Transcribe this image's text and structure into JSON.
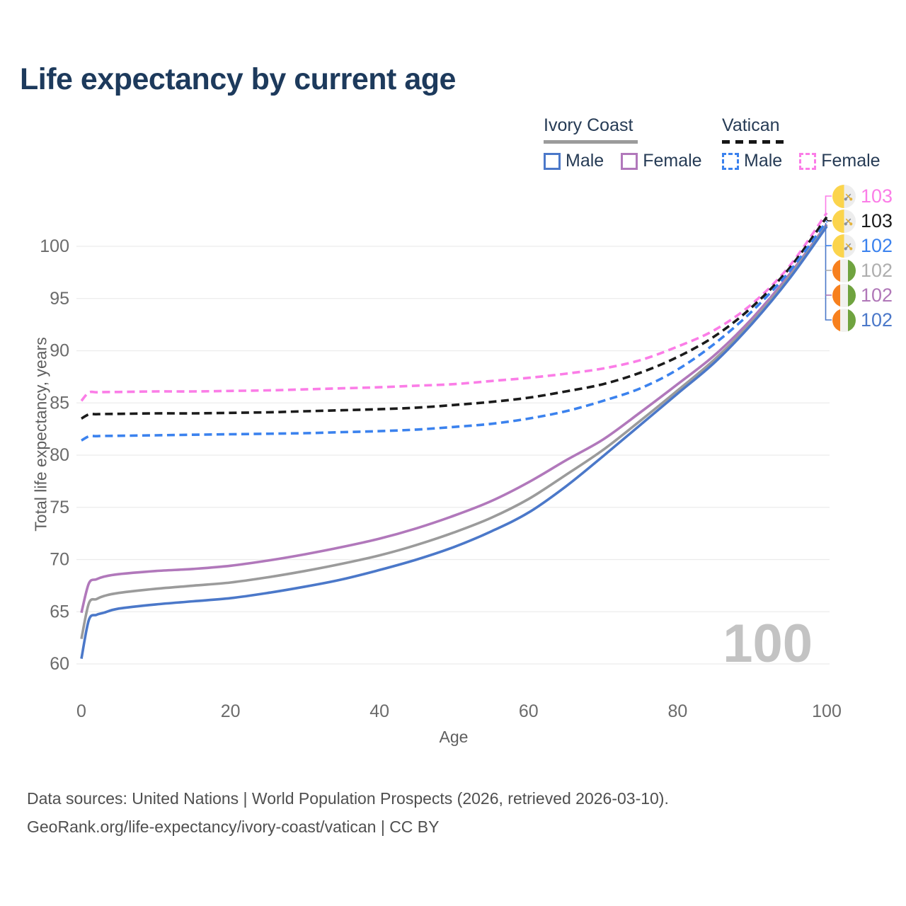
{
  "title": "Life expectancy by current age",
  "y_axis_title": "Total life expectancy, years",
  "x_axis_title": "Age",
  "watermark_age": "100",
  "footer": {
    "line1": "Data sources: United Nations | World Population Prospects (2026, retrieved 2026-03-10).",
    "line2": "GeoRank.org/life-expectancy/ivory-coast/vatican | CC BY"
  },
  "legend": {
    "groups": [
      {
        "label": "Ivory Coast",
        "line_style": "solid",
        "line_color": "#9b9b9b",
        "items": [
          {
            "label": "Male",
            "color": "#4b78c9",
            "style": "solid"
          },
          {
            "label": "Female",
            "color": "#b178bb",
            "style": "solid"
          }
        ]
      },
      {
        "label": "Vatican",
        "line_style": "dashed",
        "line_color": "#161616",
        "items": [
          {
            "label": "Male",
            "color": "#3b82ee",
            "style": "dashed"
          },
          {
            "label": "Female",
            "color": "#fb7de7",
            "style": "dashed"
          }
        ]
      }
    ]
  },
  "chart_data": {
    "type": "line",
    "title": "Life expectancy by current age",
    "xlabel": "Age",
    "ylabel": "Total life expectancy, years",
    "xlim": [
      0,
      100
    ],
    "ylim": [
      60,
      103.5
    ],
    "xticks": [
      0,
      20,
      40,
      60,
      80,
      100
    ],
    "yticks": [
      60,
      65,
      70,
      75,
      80,
      85,
      90,
      95,
      100
    ],
    "grid": "horizontal",
    "legend_position": "top-right",
    "x": [
      0,
      1,
      2,
      3,
      5,
      10,
      15,
      20,
      25,
      30,
      35,
      40,
      45,
      50,
      55,
      60,
      65,
      70,
      75,
      80,
      85,
      90,
      95,
      100
    ],
    "series": [
      {
        "name": "Vatican Female",
        "country": "Vatican",
        "sex": "Female",
        "style": "dashed",
        "color": "#fb7de7",
        "end_label": "103",
        "values": [
          85.2,
          86.0,
          86.02,
          86.04,
          86.05,
          86.1,
          86.1,
          86.15,
          86.2,
          86.3,
          86.4,
          86.5,
          86.65,
          86.8,
          87.1,
          87.4,
          87.8,
          88.3,
          89.1,
          90.4,
          92.0,
          94.5,
          98.1,
          103.2
        ]
      },
      {
        "name": "Vatican",
        "country": "Vatican",
        "sex": "Both",
        "style": "dashed",
        "color": "#1b1b1b",
        "end_label": "103",
        "values": [
          83.5,
          83.9,
          83.92,
          83.94,
          83.95,
          84.0,
          84.0,
          84.05,
          84.1,
          84.2,
          84.3,
          84.4,
          84.55,
          84.8,
          85.1,
          85.5,
          86.1,
          86.8,
          87.9,
          89.4,
          91.4,
          94.2,
          97.9,
          102.8
        ]
      },
      {
        "name": "Vatican Male",
        "country": "Vatican",
        "sex": "Male",
        "style": "dashed",
        "color": "#3b82ee",
        "end_label": "102",
        "values": [
          81.4,
          81.8,
          81.82,
          81.84,
          81.85,
          81.9,
          81.95,
          82.0,
          82.05,
          82.1,
          82.2,
          82.3,
          82.45,
          82.7,
          83.0,
          83.5,
          84.2,
          85.2,
          86.4,
          88.2,
          90.7,
          93.8,
          97.6,
          102.4
        ]
      },
      {
        "name": "Ivory Coast Female",
        "country": "Ivory Coast",
        "sex": "Female",
        "style": "solid",
        "color": "#b178bb",
        "end_label": "102",
        "values": [
          64.9,
          67.7,
          68.1,
          68.35,
          68.6,
          68.9,
          69.1,
          69.4,
          69.9,
          70.5,
          71.2,
          72.0,
          73.0,
          74.2,
          75.6,
          77.4,
          79.5,
          81.5,
          84.1,
          86.8,
          89.6,
          93.1,
          97.3,
          102.1
        ]
      },
      {
        "name": "Ivory Coast",
        "country": "Ivory Coast",
        "sex": "Both",
        "style": "solid",
        "color": "#9b9b9b",
        "end_label": "102",
        "values": [
          62.4,
          65.8,
          66.2,
          66.5,
          66.8,
          67.2,
          67.5,
          67.8,
          68.3,
          68.9,
          69.6,
          70.4,
          71.4,
          72.6,
          74.0,
          75.8,
          78.1,
          80.5,
          83.3,
          86.2,
          89.2,
          92.8,
          97.1,
          102.0
        ]
      },
      {
        "name": "Ivory Coast Male",
        "country": "Ivory Coast",
        "sex": "Male",
        "style": "solid",
        "color": "#4b78c9",
        "end_label": "102",
        "values": [
          60.5,
          64.2,
          64.7,
          64.9,
          65.3,
          65.7,
          66.0,
          66.3,
          66.8,
          67.4,
          68.1,
          69.0,
          70.0,
          71.2,
          72.7,
          74.5,
          77.0,
          79.9,
          82.9,
          85.9,
          88.9,
          92.6,
          96.9,
          101.9
        ]
      }
    ],
    "end_labels": [
      {
        "value": "103",
        "flag": "vatican",
        "series": "Vatican Female",
        "color": "#fb7de7"
      },
      {
        "value": "103",
        "flag": "vatican",
        "series": "Vatican",
        "color": "#1b1b1b"
      },
      {
        "value": "102",
        "flag": "vatican",
        "series": "Vatican Male",
        "color": "#3b82ee"
      },
      {
        "value": "102",
        "flag": "ivory-coast",
        "series": "Ivory Coast",
        "color": "#aeaeae"
      },
      {
        "value": "102",
        "flag": "ivory-coast",
        "series": "Ivory Coast Female",
        "color": "#b077b8"
      },
      {
        "value": "102",
        "flag": "ivory-coast",
        "series": "Ivory Coast Male",
        "color": "#4b78c9"
      }
    ]
  }
}
